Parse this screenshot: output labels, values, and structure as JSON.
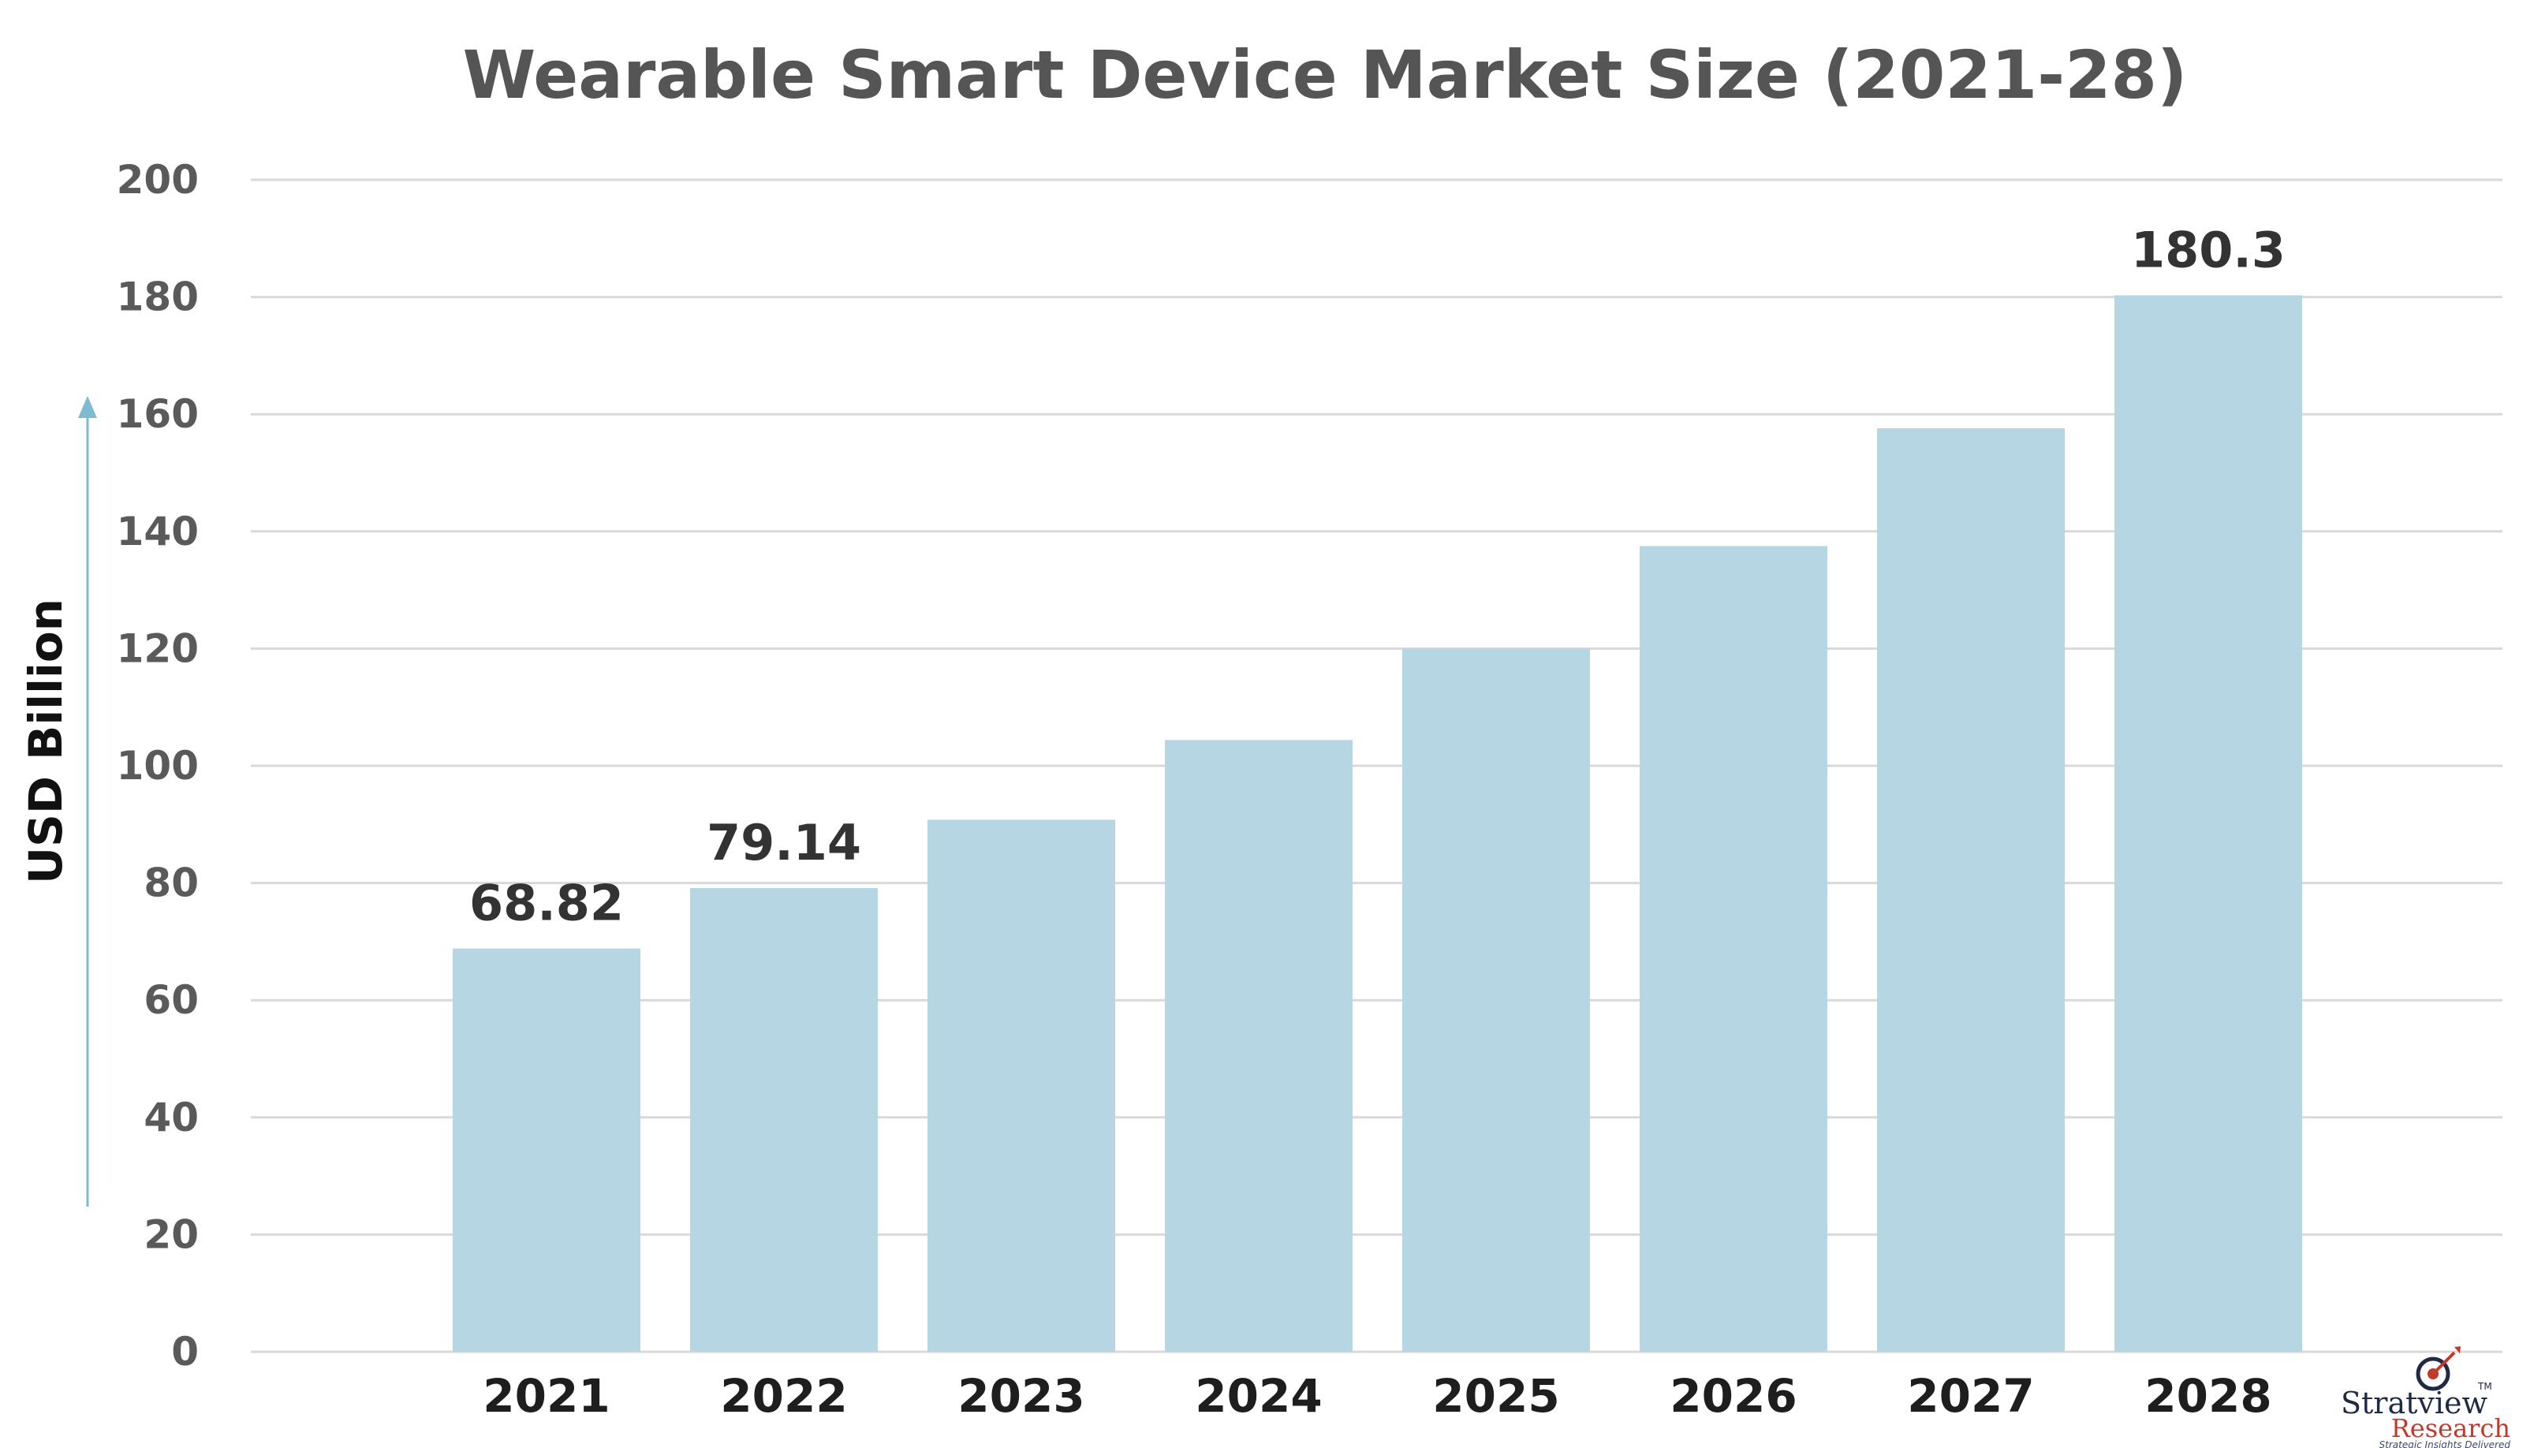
{
  "chart_data": {
    "type": "bar",
    "title": "Wearable Smart Device Market Size (2021-28)",
    "ylabel": "USD Billion",
    "xlabel": "",
    "categories": [
      "2021",
      "2022",
      "2023",
      "2024",
      "2025",
      "2026",
      "2027",
      "2028"
    ],
    "values": [
      68.82,
      79.14,
      90.8,
      104.4,
      120.0,
      137.5,
      157.6,
      180.3
    ],
    "data_labels": [
      "68.82",
      "79.14",
      "",
      "",
      "",
      "",
      "",
      "180.3"
    ],
    "ylim": [
      0,
      200
    ],
    "yticks": [
      0,
      20,
      40,
      60,
      80,
      100,
      120,
      140,
      160,
      180,
      200
    ],
    "grid": true,
    "bar_color": "#b7d6e4",
    "grid_color": "#d9d9d9",
    "arrow_color": "#7fbad3"
  },
  "logo": {
    "name": "Stratview",
    "sub": "Research",
    "tm": "TM",
    "tagline": "Strategic Insights Delivered"
  }
}
